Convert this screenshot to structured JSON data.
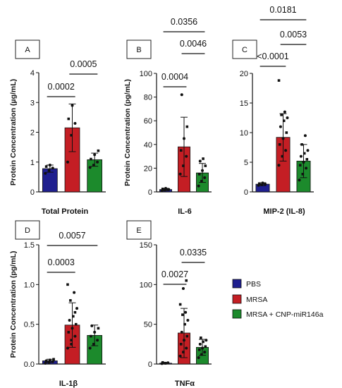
{
  "colors": {
    "PBS": "#1f1f8f",
    "MRSA": "#c41e24",
    "MRSA + CNP-miR146a": "#1c8a2c"
  },
  "legend": [
    "PBS",
    "MRSA",
    "MRSA + CNP-miR146a"
  ],
  "chart_data": [
    {
      "type": "bar",
      "panel": "A",
      "ylabel": "Protein Concentration (µg/mL)",
      "xlabel": "Total Protein",
      "ylim": [
        0,
        4
      ],
      "yticks": [
        0,
        1,
        2,
        3,
        4
      ],
      "categories": [
        "PBS",
        "MRSA",
        "MRSA + CNP-miR146a"
      ],
      "values": [
        0.78,
        2.15,
        1.08
      ],
      "error": [
        0.12,
        0.8,
        0.22
      ],
      "points": [
        [
          0.62,
          0.72,
          0.8,
          0.85,
          0.9
        ],
        [
          1.0,
          1.9,
          2.3,
          2.45,
          2.9
        ],
        [
          0.82,
          0.9,
          1.0,
          1.1,
          1.25,
          1.38
        ]
      ],
      "comparisons": [
        {
          "a": 0,
          "b": 1,
          "label": "0.0002"
        },
        {
          "a": 1,
          "b": 2,
          "label": "0.0005"
        }
      ]
    },
    {
      "type": "bar",
      "panel": "B",
      "ylabel": "Protein Concentration (pg/mL)",
      "xlabel": "IL-6",
      "ylim": [
        0,
        100
      ],
      "yticks": [
        0,
        20,
        40,
        60,
        80,
        100
      ],
      "categories": [
        "PBS",
        "MRSA",
        "MRSA + CNP-miR146a"
      ],
      "values": [
        2,
        38,
        16
      ],
      "error": [
        1,
        25,
        8
      ],
      "points": [
        [
          1,
          1.5,
          2,
          2.5,
          3,
          2
        ],
        [
          15,
          22,
          30,
          35,
          45,
          55,
          82
        ],
        [
          5,
          9,
          12,
          15,
          18,
          22,
          26,
          28
        ]
      ],
      "comparisons": [
        {
          "a": 0,
          "b": 1,
          "label": "0.0004"
        },
        {
          "a": 1,
          "b": 2,
          "label": "0.0046"
        },
        {
          "a": 0,
          "b": 2,
          "label": "0.0356"
        }
      ]
    },
    {
      "type": "bar",
      "panel": "C",
      "ylabel": "",
      "xlabel": "MIP-2 (IL-8)",
      "ylim": [
        0,
        20
      ],
      "yticks": [
        0,
        5,
        10,
        15,
        20
      ],
      "categories": [
        "PBS",
        "MRSA",
        "MRSA + CNP-miR146a"
      ],
      "values": [
        1.3,
        9.2,
        5.2
      ],
      "error": [
        0.25,
        4,
        2.8
      ],
      "points": [
        [
          1.1,
          1.2,
          1.3,
          1.4,
          1.5
        ],
        [
          4.5,
          6,
          7,
          8,
          9,
          10,
          11,
          12,
          12.5,
          13,
          13.5,
          18.8
        ],
        [
          2,
          3,
          4,
          4.5,
          5,
          5.5,
          6,
          6.5,
          7,
          8,
          9.5
        ]
      ],
      "comparisons": [
        {
          "a": 0,
          "b": 1,
          "label": "<0.0001"
        },
        {
          "a": 1,
          "b": 2,
          "label": "0.0053"
        },
        {
          "a": 0,
          "b": 2,
          "label": "0.0181"
        }
      ]
    },
    {
      "type": "bar",
      "panel": "D",
      "ylabel": "Protein Concentration (pg/mL)",
      "xlabel": "IL-1β",
      "ylim": [
        0,
        1.5
      ],
      "yticks": [
        0,
        0.5,
        1.0,
        1.5
      ],
      "ytick_labels": [
        "0.0",
        "0.5",
        "1.0",
        "1.5"
      ],
      "categories": [
        "PBS",
        "MRSA",
        "MRSA + CNP-miR146a"
      ],
      "values": [
        0.04,
        0.49,
        0.36
      ],
      "error": [
        0.02,
        0.28,
        0.13
      ],
      "points": [
        [
          0.01,
          0.02,
          0.03,
          0.04,
          0.05,
          0.06
        ],
        [
          0.2,
          0.3,
          0.35,
          0.4,
          0.45,
          0.5,
          0.55,
          0.6,
          0.7,
          0.8,
          0.9,
          1.0,
          0.25,
          0.65
        ],
        [
          0.2,
          0.25,
          0.3,
          0.35,
          0.4,
          0.45,
          0.48
        ]
      ],
      "comparisons": [
        {
          "a": 0,
          "b": 1,
          "label": "0.0003"
        },
        {
          "a": 0,
          "b": 2,
          "label": "0.0057"
        }
      ]
    },
    {
      "type": "bar",
      "panel": "E",
      "ylabel": "",
      "xlabel": "TNFα",
      "ylim": [
        0,
        150
      ],
      "yticks": [
        0,
        50,
        100,
        150
      ],
      "categories": [
        "PBS",
        "MRSA",
        "MRSA + CNP-miR146a"
      ],
      "values": [
        1,
        39,
        21
      ],
      "error": [
        0.5,
        31,
        10
      ],
      "points": [
        [
          0.5,
          1,
          1.5,
          2,
          1
        ],
        [
          10,
          15,
          20,
          25,
          30,
          35,
          40,
          50,
          55,
          62,
          65,
          75,
          95,
          105
        ],
        [
          8,
          12,
          15,
          18,
          20,
          22,
          25,
          28,
          30,
          33
        ]
      ],
      "comparisons": [
        {
          "a": 0,
          "b": 1,
          "label": "0.0027"
        },
        {
          "a": 1,
          "b": 2,
          "label": "0.0335"
        }
      ]
    }
  ]
}
